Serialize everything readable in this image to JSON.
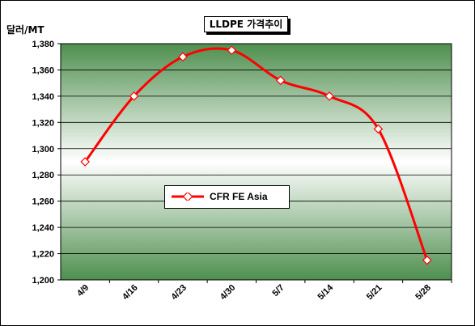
{
  "chart_data": {
    "type": "line",
    "title": "LLDPE 가격추이",
    "ylabel": "달러/MT",
    "xlabel": "",
    "categories": [
      "4/9",
      "4/16",
      "4/23",
      "4/30",
      "5/7",
      "5/14",
      "5/21",
      "5/28"
    ],
    "series": [
      {
        "name": "CFR FE Asia",
        "values": [
          1290,
          1340,
          1370,
          1375,
          1352,
          1340,
          1315,
          1215
        ]
      }
    ],
    "ylim": [
      1200,
      1380
    ],
    "ytick_step": 20,
    "yticks": [
      "1,200",
      "1,220",
      "1,240",
      "1,260",
      "1,280",
      "1,300",
      "1,320",
      "1,340",
      "1,360",
      "1,380"
    ],
    "grid": true,
    "legend_position": "center-left",
    "colors": {
      "line": "#ff0000",
      "marker_fill": "#ffffff",
      "plot_gradient_center": "#ffffff",
      "plot_gradient_edge": "#4f8f4f"
    }
  }
}
